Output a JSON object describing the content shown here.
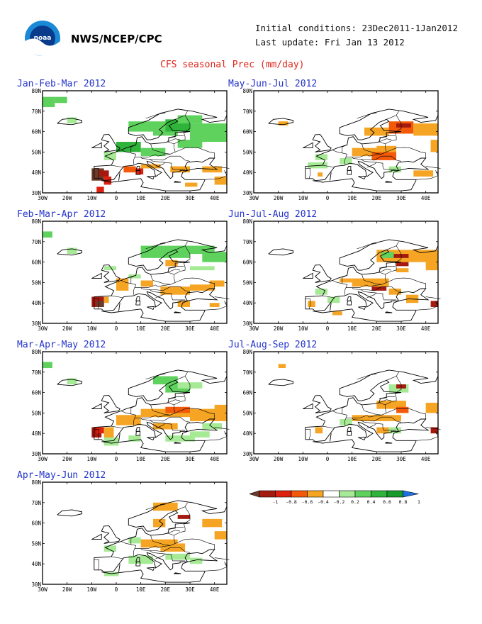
{
  "header": {
    "agency": "NWS/NCEP/CPC",
    "initial_conditions": "Initial conditions: 23Dec2011-1Jan2012",
    "last_update": "Last update: Fri Jan 13 2012",
    "title": "CFS seasonal Prec (mm/day)"
  },
  "axes": {
    "lon_labels": [
      "30W",
      "20W",
      "10W",
      "0",
      "10E",
      "20E",
      "30E",
      "40E"
    ],
    "lat_labels": [
      "80N",
      "70N",
      "60N",
      "50N",
      "40N",
      "30N"
    ]
  },
  "colors": {
    "title_blue": "#2233cc",
    "title_red": "#e0241b",
    "scale": [
      "#6b3a2a",
      "#a51a10",
      "#dd2010",
      "#f25a0a",
      "#f5a523",
      "#ffffff",
      "#a6ea96",
      "#5fd25e",
      "#2fb33a",
      "#169b2b",
      "#1f6fe3"
    ]
  },
  "legend": {
    "labels": [
      "-1",
      "-0.8",
      "-0.6",
      "-0.4",
      "-0.2",
      "0.2",
      "0.4",
      "0.6",
      "0.8",
      "1"
    ]
  },
  "panels": [
    {
      "title": "Jan-Feb-Mar 2012",
      "cells": [
        [
          -30,
          72,
          5,
          5,
          "#5fd25e"
        ],
        [
          -25,
          74,
          5,
          3,
          "#5fd25e"
        ],
        [
          -20,
          64,
          4,
          3,
          "#a6ea96"
        ],
        [
          5,
          60,
          15,
          5,
          "#5fd25e"
        ],
        [
          15,
          58,
          10,
          4,
          "#5fd25e"
        ],
        [
          20,
          60,
          10,
          6,
          "#2fb33a"
        ],
        [
          25,
          64,
          10,
          4,
          "#5fd25e"
        ],
        [
          30,
          55,
          16,
          9,
          "#5fd25e"
        ],
        [
          25,
          52,
          10,
          4,
          "#5fd25e"
        ],
        [
          0,
          50,
          10,
          5,
          "#2fb33a"
        ],
        [
          10,
          48,
          10,
          4,
          "#5fd25e"
        ],
        [
          -5,
          46,
          5,
          4,
          "#a6ea96"
        ],
        [
          -10,
          36,
          5,
          6,
          "#6b3a2a"
        ],
        [
          -7,
          38,
          4,
          3,
          "#a51a10"
        ],
        [
          -5,
          34,
          3,
          4,
          "#dd2010"
        ],
        [
          -8,
          30,
          3,
          3,
          "#dd2010"
        ],
        [
          3,
          40,
          5,
          3,
          "#f25a0a"
        ],
        [
          8,
          39,
          3,
          3,
          "#dd2010"
        ],
        [
          10,
          42,
          8,
          2,
          "#f5a523"
        ],
        [
          22,
          40,
          8,
          3,
          "#f5a523"
        ],
        [
          35,
          40,
          8,
          3,
          "#f5a523"
        ],
        [
          40,
          34,
          5,
          4,
          "#f5a523"
        ],
        [
          28,
          33,
          5,
          2,
          "#f5a523"
        ]
      ]
    },
    {
      "title": "May-Jun-Jul 2012",
      "cells": [
        [
          -20,
          63,
          4,
          2,
          "#f5a523"
        ],
        [
          15,
          58,
          10,
          4,
          "#f5a523"
        ],
        [
          25,
          59,
          10,
          6,
          "#f25a0a"
        ],
        [
          28,
          62,
          6,
          2,
          "#a51a10"
        ],
        [
          35,
          58,
          10,
          6,
          "#f5a523"
        ],
        [
          42,
          50,
          3,
          6,
          "#f5a523"
        ],
        [
          10,
          48,
          15,
          4,
          "#f5a523"
        ],
        [
          18,
          46,
          10,
          4,
          "#f25a0a"
        ],
        [
          20,
          50,
          8,
          3,
          "#f5a523"
        ],
        [
          -8,
          42,
          8,
          3,
          "#a6ea96"
        ],
        [
          -5,
          46,
          5,
          3,
          "#a6ea96"
        ],
        [
          5,
          44,
          5,
          3,
          "#a6ea96"
        ],
        [
          25,
          40,
          5,
          3,
          "#a6ea96"
        ],
        [
          35,
          38,
          8,
          3,
          "#f5a523"
        ],
        [
          -4,
          38,
          2,
          2,
          "#f5a523"
        ]
      ]
    },
    {
      "title": "Feb-Mar-Apr 2012",
      "cells": [
        [
          -30,
          72,
          4,
          3,
          "#5fd25e"
        ],
        [
          -20,
          64,
          4,
          3,
          "#a6ea96"
        ],
        [
          10,
          62,
          20,
          6,
          "#5fd25e"
        ],
        [
          25,
          64,
          15,
          4,
          "#5fd25e"
        ],
        [
          35,
          60,
          10,
          5,
          "#5fd25e"
        ],
        [
          30,
          56,
          10,
          2,
          "#a6ea96"
        ],
        [
          -10,
          38,
          5,
          5,
          "#a51a10"
        ],
        [
          -8,
          38,
          3,
          3,
          "#6b3a2a"
        ],
        [
          -5,
          40,
          2,
          3,
          "#f5a523"
        ],
        [
          0,
          46,
          5,
          6,
          "#f5a523"
        ],
        [
          10,
          48,
          5,
          3,
          "#f5a523"
        ],
        [
          18,
          44,
          12,
          4,
          "#f5a523"
        ],
        [
          30,
          46,
          10,
          3,
          "#f5a523"
        ],
        [
          38,
          48,
          6,
          3,
          "#f5a523"
        ],
        [
          20,
          58,
          5,
          3,
          "#f5a523"
        ],
        [
          5,
          52,
          5,
          2,
          "#a6ea96"
        ],
        [
          -5,
          56,
          5,
          2,
          "#a6ea96"
        ],
        [
          25,
          38,
          5,
          3,
          "#f5a523"
        ],
        [
          38,
          38,
          4,
          2,
          "#f5a523"
        ]
      ]
    },
    {
      "title": "Jun-Jul-Aug 2012",
      "cells": [
        [
          20,
          60,
          25,
          6,
          "#f5a523"
        ],
        [
          25,
          62,
          8,
          2,
          "#a51a10"
        ],
        [
          28,
          58,
          5,
          2,
          "#a51a10"
        ],
        [
          40,
          56,
          5,
          6,
          "#f5a523"
        ],
        [
          28,
          55,
          5,
          2,
          "#f5a523"
        ],
        [
          10,
          48,
          15,
          4,
          "#f5a523"
        ],
        [
          18,
          46,
          6,
          2,
          "#a51a10"
        ],
        [
          5,
          50,
          5,
          2,
          "#f5a523"
        ],
        [
          -5,
          44,
          5,
          3,
          "#a6ea96"
        ],
        [
          0,
          40,
          5,
          3,
          "#a6ea96"
        ],
        [
          -8,
          38,
          3,
          3,
          "#f5a523"
        ],
        [
          2,
          34,
          4,
          2,
          "#f5a523"
        ],
        [
          25,
          44,
          5,
          3,
          "#f5a523"
        ],
        [
          32,
          40,
          5,
          4,
          "#f5a523"
        ],
        [
          42,
          38,
          3,
          3,
          "#a51a10"
        ],
        [
          22,
          62,
          5,
          3,
          "#5fd25e"
        ]
      ]
    },
    {
      "title": "Mar-Apr-May 2012",
      "cells": [
        [
          -30,
          72,
          4,
          3,
          "#5fd25e"
        ],
        [
          -20,
          64,
          4,
          3,
          "#a6ea96"
        ],
        [
          15,
          64,
          10,
          4,
          "#5fd25e"
        ],
        [
          20,
          60,
          10,
          4,
          "#5fd25e"
        ],
        [
          25,
          62,
          10,
          3,
          "#a6ea96"
        ],
        [
          -10,
          38,
          4,
          5,
          "#a51a10"
        ],
        [
          -8,
          40,
          3,
          3,
          "#dd2010"
        ],
        [
          -5,
          38,
          4,
          5,
          "#f5a523"
        ],
        [
          0,
          44,
          10,
          5,
          "#f5a523"
        ],
        [
          10,
          48,
          20,
          4,
          "#f5a523"
        ],
        [
          20,
          50,
          10,
          3,
          "#f25a0a"
        ],
        [
          30,
          46,
          15,
          6,
          "#f5a523"
        ],
        [
          40,
          50,
          5,
          4,
          "#f5a523"
        ],
        [
          15,
          42,
          10,
          3,
          "#f5a523"
        ],
        [
          -5,
          34,
          6,
          4,
          "#a6ea96"
        ],
        [
          5,
          36,
          5,
          3,
          "#a6ea96"
        ],
        [
          20,
          36,
          12,
          3,
          "#a6ea96"
        ],
        [
          30,
          38,
          8,
          3,
          "#a6ea96"
        ],
        [
          35,
          42,
          8,
          3,
          "#a6ea96"
        ]
      ]
    },
    {
      "title": "Jul-Aug-Sep 2012",
      "cells": [
        [
          -20,
          72,
          3,
          2,
          "#f5a523"
        ],
        [
          25,
          60,
          8,
          4,
          "#a6ea96"
        ],
        [
          28,
          62,
          4,
          2,
          "#a51a10"
        ],
        [
          20,
          52,
          12,
          4,
          "#f5a523"
        ],
        [
          28,
          50,
          5,
          3,
          "#f25a0a"
        ],
        [
          10,
          46,
          20,
          3,
          "#f5a523"
        ],
        [
          40,
          50,
          5,
          5,
          "#f5a523"
        ],
        [
          -5,
          40,
          3,
          3,
          "#f5a523"
        ],
        [
          5,
          44,
          5,
          3,
          "#a6ea96"
        ],
        [
          20,
          40,
          5,
          3,
          "#f5a523"
        ],
        [
          25,
          40,
          5,
          3,
          "#a6ea96"
        ],
        [
          42,
          40,
          3,
          3,
          "#a51a10"
        ]
      ]
    },
    {
      "title": "Apr-May-Jun 2012",
      "cells": [
        [
          15,
          66,
          10,
          4,
          "#f5a523"
        ],
        [
          25,
          62,
          5,
          2,
          "#a51a10"
        ],
        [
          35,
          58,
          8,
          4,
          "#f5a523"
        ],
        [
          40,
          52,
          5,
          4,
          "#f5a523"
        ],
        [
          10,
          48,
          15,
          4,
          "#f5a523"
        ],
        [
          18,
          46,
          10,
          4,
          "#f5a523"
        ],
        [
          5,
          50,
          5,
          3,
          "#a6ea96"
        ],
        [
          -5,
          46,
          5,
          3,
          "#a6ea96"
        ],
        [
          5,
          40,
          10,
          4,
          "#a6ea96"
        ],
        [
          20,
          42,
          10,
          3,
          "#a6ea96"
        ],
        [
          -5,
          34,
          6,
          2,
          "#a6ea96"
        ],
        [
          30,
          40,
          5,
          3,
          "#a6ea96"
        ],
        [
          15,
          58,
          5,
          4,
          "#f5a523"
        ]
      ]
    }
  ]
}
